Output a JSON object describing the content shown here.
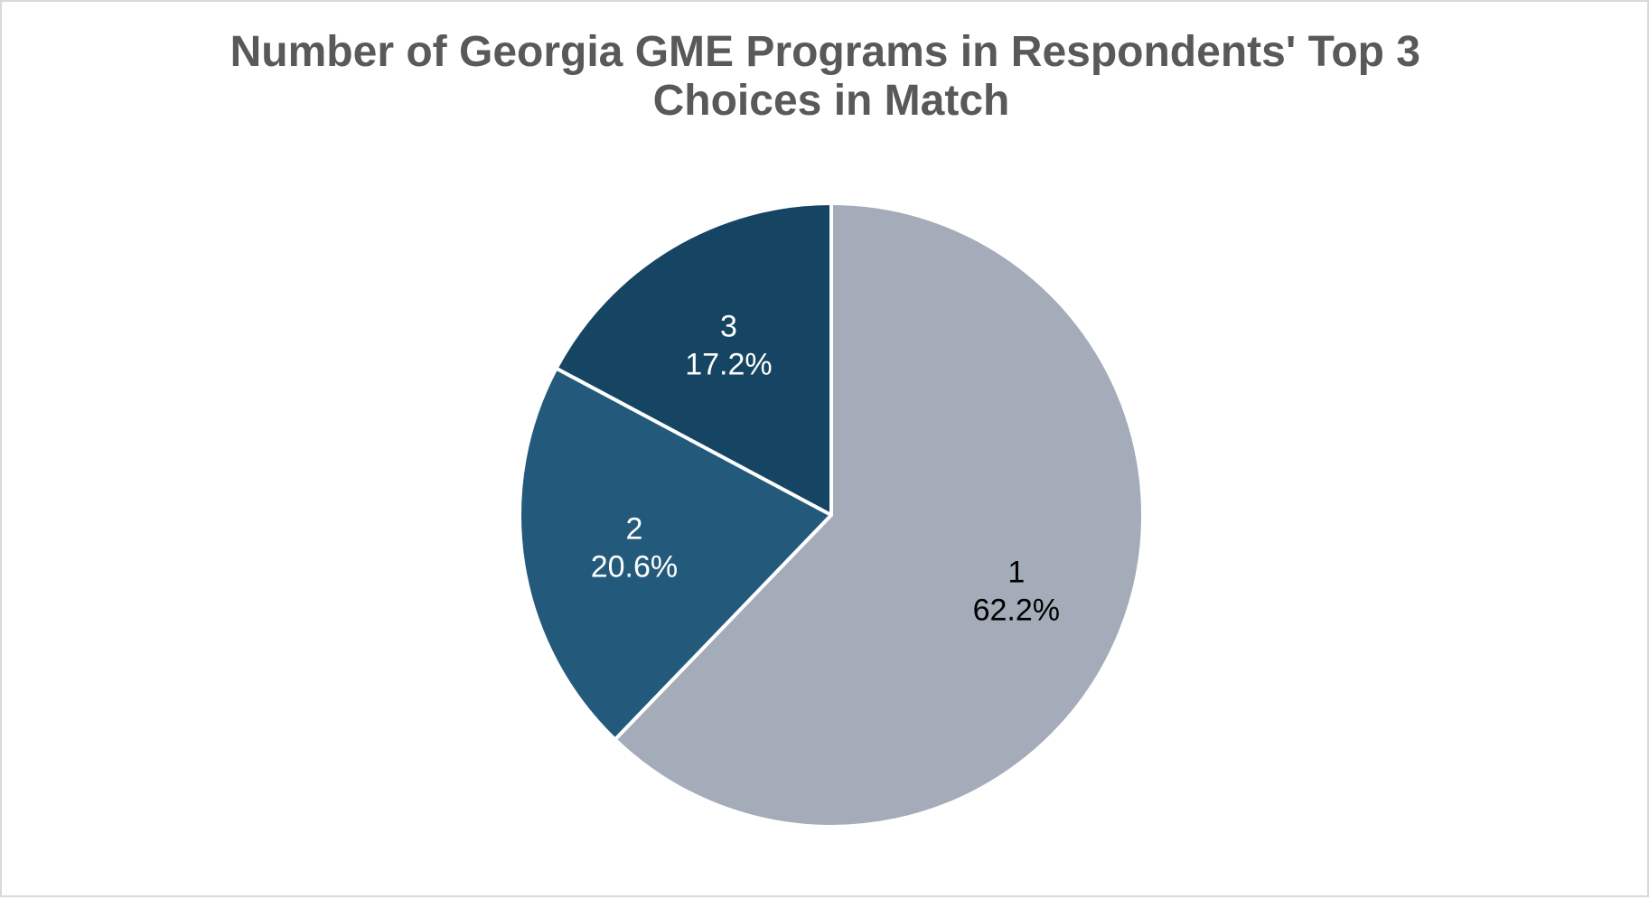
{
  "chart_data": {
    "type": "pie",
    "title_lines": [
      "Number of Georgia GME Programs in Respondents' Top 3",
      "Choices in Match"
    ],
    "start_angle_deg": 0,
    "direction": "clockwise",
    "slices": [
      {
        "label": "1",
        "value": 62.2,
        "display": "62.2%",
        "color": "#a3acb8",
        "text_color": "#000000"
      },
      {
        "label": "2",
        "value": 20.6,
        "display": "20.6%",
        "color": "#235a7c",
        "text_color": "#ffffff"
      },
      {
        "label": "3",
        "value": 17.2,
        "display": "17.2%",
        "color": "#164564",
        "text_color": "#ffffff"
      }
    ],
    "legend": "none"
  }
}
